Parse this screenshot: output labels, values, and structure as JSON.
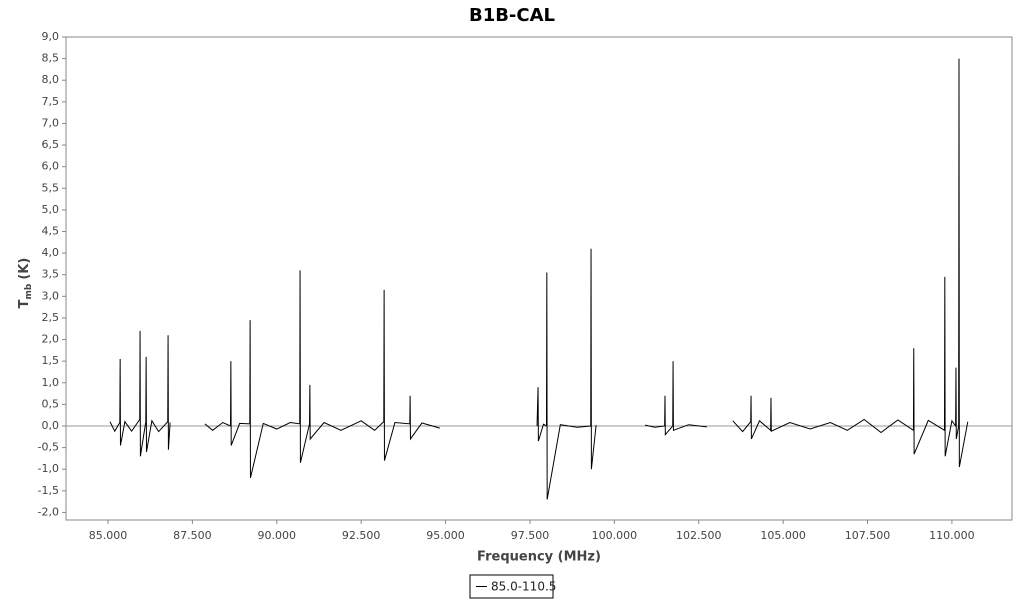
{
  "chart_data": {
    "type": "line",
    "title": "B1B-CAL",
    "xlabel": "Frequency (MHz)",
    "ylabel": [
      "T",
      "mb",
      "(K)"
    ],
    "xlim": [
      83.756,
      111.78
    ],
    "ylim": [
      -2.175,
      9.0
    ],
    "xticks": [
      {
        "value": 85,
        "label": "85.000"
      },
      {
        "value": 87.5,
        "label": "87.500"
      },
      {
        "value": 90,
        "label": "90.000"
      },
      {
        "value": 92.5,
        "label": "92.500"
      },
      {
        "value": 95,
        "label": "95.000"
      },
      {
        "value": 97.5,
        "label": "97.500"
      },
      {
        "value": 100,
        "label": "100.000"
      },
      {
        "value": 102.5,
        "label": "102.500"
      },
      {
        "value": 105,
        "label": "105.000"
      },
      {
        "value": 107.5,
        "label": "107.500"
      },
      {
        "value": 110,
        "label": "110.000"
      }
    ],
    "yticks": [
      {
        "value": -2,
        "label": "-2,0"
      },
      {
        "value": -1.5,
        "label": "-1,5"
      },
      {
        "value": -1,
        "label": "-1,0"
      },
      {
        "value": -0.5,
        "label": "-0,5"
      },
      {
        "value": 0,
        "label": "0,0"
      },
      {
        "value": 0.5,
        "label": "0,5"
      },
      {
        "value": 1,
        "label": "1,0"
      },
      {
        "value": 1.5,
        "label": "1,5"
      },
      {
        "value": 2,
        "label": "2,0"
      },
      {
        "value": 2.5,
        "label": "2,5"
      },
      {
        "value": 3,
        "label": "3,0"
      },
      {
        "value": 3.5,
        "label": "3,5"
      },
      {
        "value": 4,
        "label": "4,0"
      },
      {
        "value": 4.5,
        "label": "4,5"
      },
      {
        "value": 5,
        "label": "5,0"
      },
      {
        "value": 5.5,
        "label": "5,5"
      },
      {
        "value": 6,
        "label": "6,0"
      },
      {
        "value": 6.5,
        "label": "6,5"
      },
      {
        "value": 7,
        "label": "7,0"
      },
      {
        "value": 7.5,
        "label": "7,5"
      },
      {
        "value": 8,
        "label": "8,0"
      },
      {
        "value": 8.5,
        "label": "8,5"
      },
      {
        "value": 9,
        "label": "9,0"
      }
    ],
    "x": [
      85.06,
      85.2,
      85.35,
      85.36,
      85.37,
      85.5,
      85.7,
      85.94,
      85.95,
      85.96,
      86.12,
      86.13,
      86.14,
      86.3,
      86.5,
      86.77,
      86.78,
      86.79,
      86.84,
      null,
      87.87,
      88.1,
      88.4,
      88.63,
      88.64,
      88.65,
      88.9,
      89.2,
      89.21,
      89.22,
      89.6,
      90.0,
      90.4,
      90.68,
      90.69,
      90.7,
      90.97,
      90.98,
      90.99,
      91.4,
      91.9,
      92.5,
      92.9,
      93.17,
      93.18,
      93.19,
      93.5,
      93.94,
      93.95,
      93.96,
      94.3,
      94.83,
      null,
      97.71,
      97.74,
      97.75,
      97.9,
      97.99,
      98.0,
      98.01,
      98.4,
      98.9,
      99.3,
      99.31,
      99.32,
      99.46,
      null,
      100.91,
      101.2,
      101.49,
      101.5,
      101.51,
      101.73,
      101.74,
      101.75,
      102.2,
      102.74,
      null,
      103.51,
      103.8,
      104.04,
      104.05,
      104.06,
      104.3,
      104.63,
      104.64,
      104.65,
      105.2,
      105.8,
      106.4,
      106.9,
      107.4,
      107.9,
      108.4,
      108.86,
      108.87,
      108.88,
      109.3,
      109.78,
      109.79,
      109.8,
      110.0,
      110.11,
      110.12,
      110.13,
      110.2,
      110.21,
      110.22,
      110.47
    ],
    "series": [
      {
        "name": "85.0-110.5",
        "color": "#000000",
        "values": [
          0.1,
          -0.12,
          0.08,
          1.55,
          -0.45,
          0.1,
          -0.12,
          0.15,
          2.2,
          -0.7,
          0.1,
          1.6,
          -0.6,
          0.12,
          -0.13,
          0.1,
          2.1,
          -0.55,
          0.08,
          null,
          0.05,
          -0.1,
          0.08,
          0.0,
          1.5,
          -0.45,
          0.06,
          0.05,
          2.45,
          -1.2,
          0.06,
          -0.07,
          0.08,
          0.05,
          3.6,
          -0.85,
          0.05,
          0.95,
          -0.3,
          0.08,
          -0.1,
          0.12,
          -0.1,
          0.1,
          3.15,
          -0.8,
          0.08,
          0.05,
          0.7,
          -0.3,
          0.07,
          -0.05,
          null,
          0.0,
          0.9,
          -0.35,
          0.04,
          0.0,
          3.55,
          -1.7,
          0.03,
          -0.03,
          0.0,
          4.1,
          -1.0,
          0.02,
          null,
          0.02,
          -0.03,
          0.0,
          0.7,
          -0.2,
          0.0,
          1.5,
          -0.1,
          0.03,
          -0.02,
          null,
          0.12,
          -0.13,
          0.1,
          0.7,
          -0.3,
          0.12,
          -0.1,
          0.65,
          -0.12,
          0.08,
          -0.07,
          0.08,
          -0.1,
          0.15,
          -0.15,
          0.14,
          -0.1,
          1.8,
          -0.65,
          0.13,
          -0.1,
          3.45,
          -0.7,
          0.12,
          0.0,
          1.35,
          -0.3,
          0.0,
          8.5,
          -0.95,
          0.1
        ]
      }
    ]
  }
}
